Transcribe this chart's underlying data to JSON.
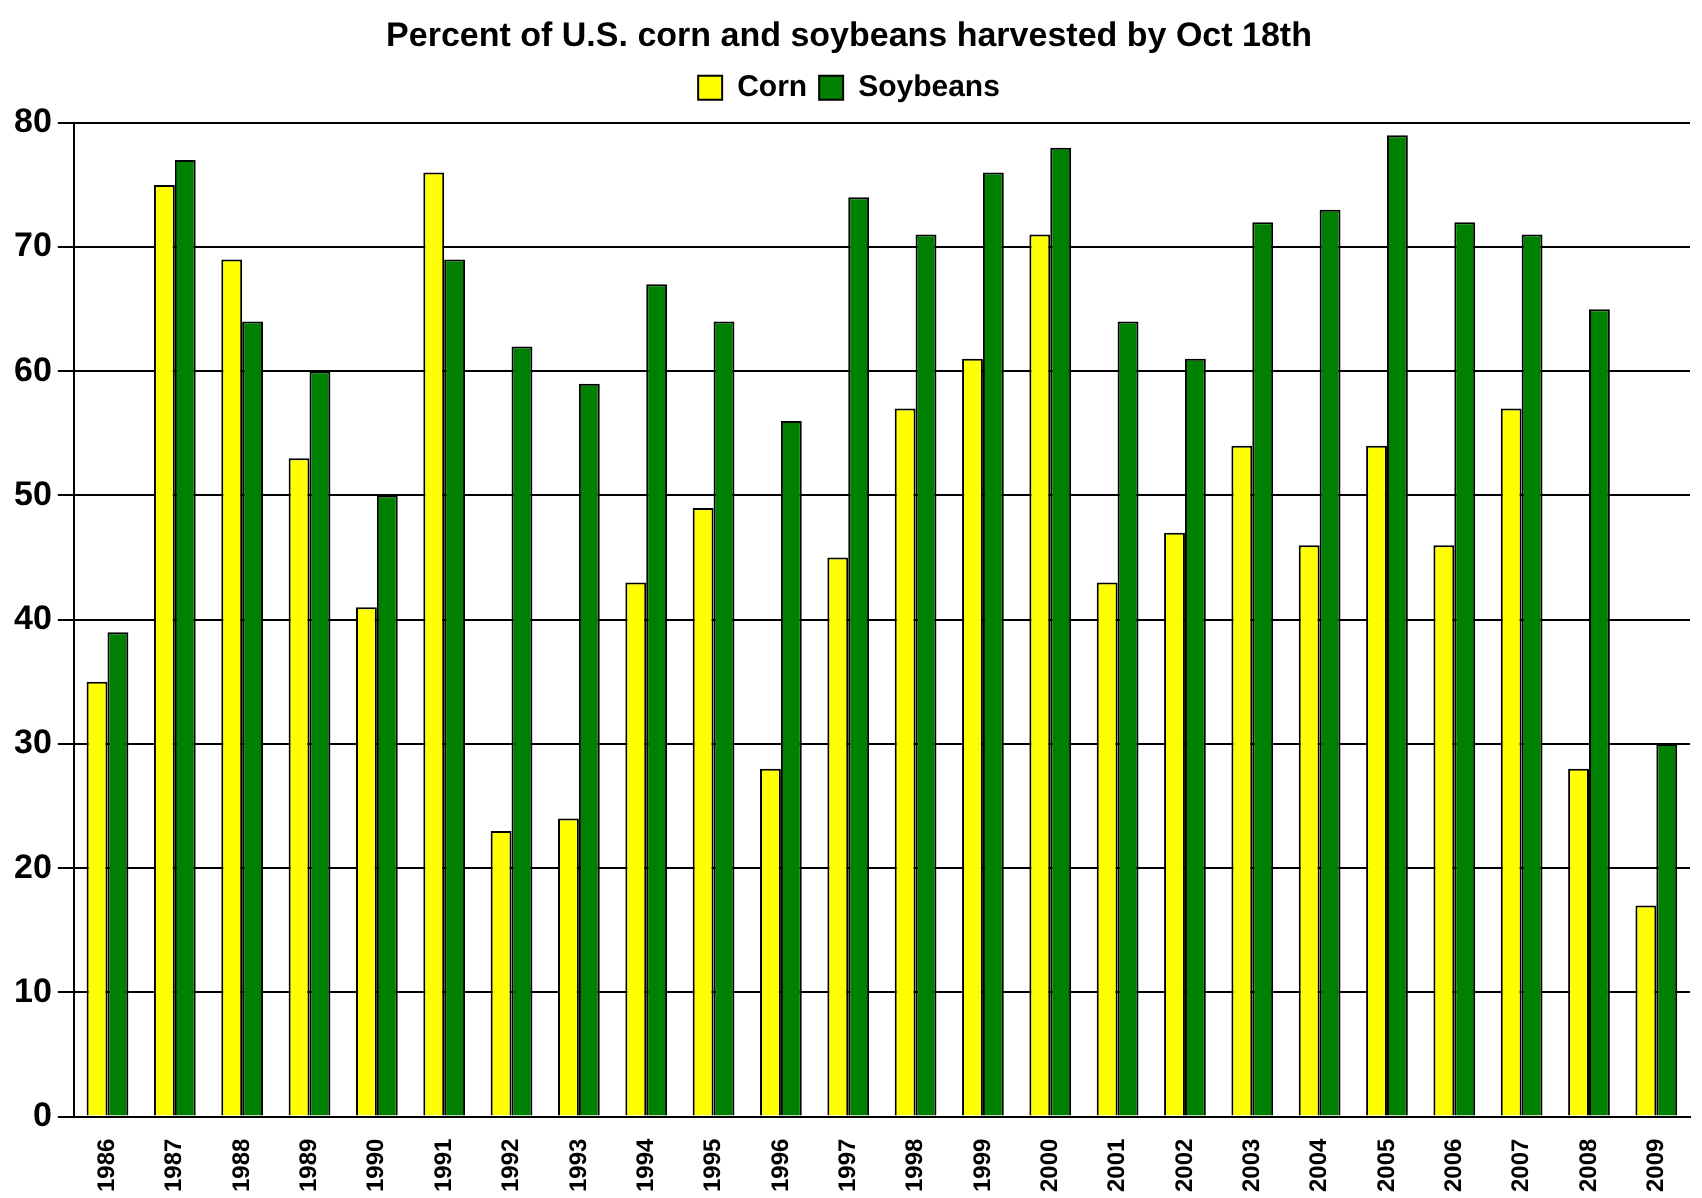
{
  "chart_data": {
    "type": "bar",
    "title": "Percent of U.S. corn and soybeans harvested by Oct 18th",
    "categories": [
      "1986",
      "1987",
      "1988",
      "1989",
      "1990",
      "1991",
      "1992",
      "1993",
      "1994",
      "1995",
      "1996",
      "1997",
      "1998",
      "1999",
      "2000",
      "2001",
      "2002",
      "2003",
      "2004",
      "2005",
      "2006",
      "2007",
      "2008",
      "2009"
    ],
    "series": [
      {
        "name": "Corn",
        "color": "#ffff00",
        "values": [
          35,
          75,
          69,
          53,
          41,
          76,
          23,
          24,
          43,
          49,
          28,
          45,
          57,
          61,
          71,
          43,
          47,
          54,
          46,
          54,
          46,
          57,
          28,
          17
        ]
      },
      {
        "name": "Soybeans",
        "color": "#008000",
        "values": [
          39,
          77,
          64,
          60,
          50,
          69,
          62,
          59,
          67,
          64,
          56,
          74,
          71,
          76,
          78,
          64,
          61,
          72,
          73,
          79,
          72,
          71,
          65,
          30
        ]
      }
    ],
    "ylim": [
      0,
      80
    ],
    "yticks": [
      0,
      10,
      20,
      30,
      40,
      50,
      60,
      70,
      80
    ],
    "grid": "y",
    "legend": "top"
  }
}
